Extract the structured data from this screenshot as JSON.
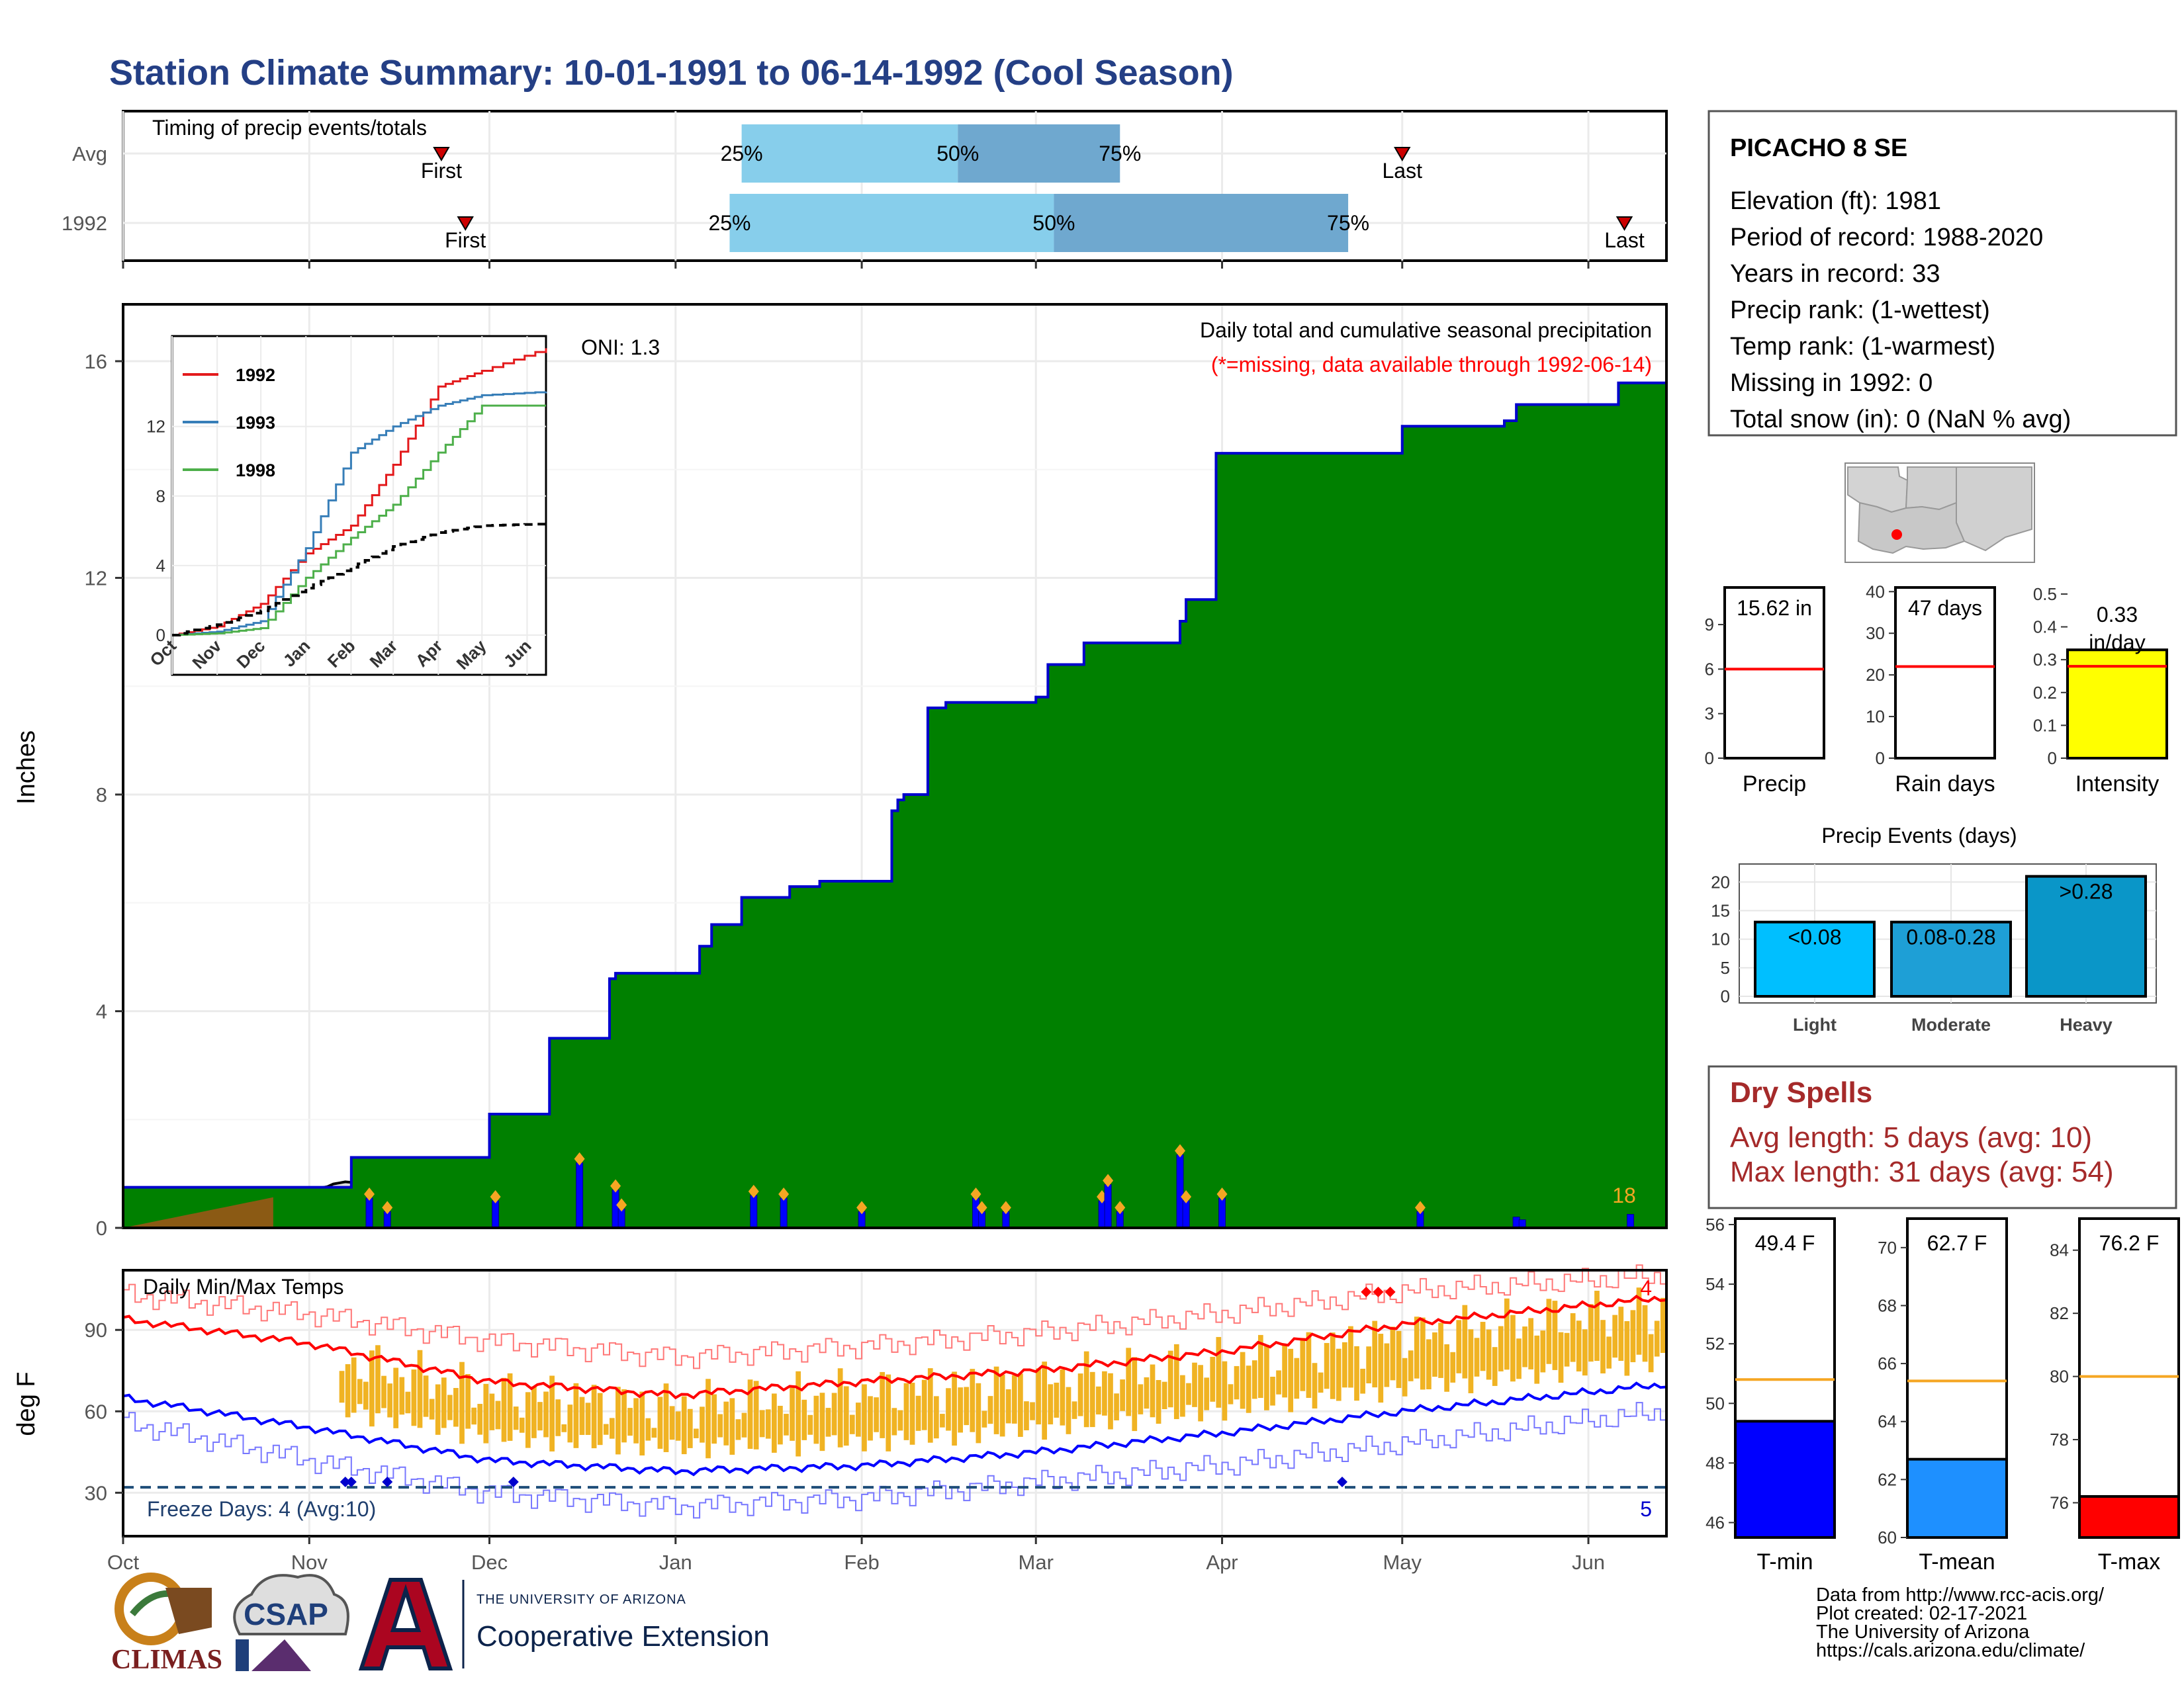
{
  "title": "Station Climate Summary: 10-01-1991 to 06-14-1992 (Cool Season)",
  "timing": {
    "title": "Timing of precip events/totals",
    "rows": [
      {
        "label": "Avg",
        "first": "First",
        "last": "Last",
        "first_date": "1991-11-23",
        "last_date": "1992-05-01",
        "p25": "25%",
        "p50": "50%",
        "p75": "75%",
        "p25_date": "1992-01-12",
        "p50_date": "1992-02-17",
        "p75_date": "1992-03-15"
      },
      {
        "label": "1992",
        "first": "First",
        "last": "Last",
        "first_date": "1991-11-27",
        "last_date": "1992-06-07",
        "p25": "25%",
        "p50": "50%",
        "p75": "75%",
        "p25_date": "1992-01-10",
        "p50_date": "1992-03-04",
        "p75_date": "1992-04-22"
      }
    ]
  },
  "precip_chart": {
    "subtitle": "Daily total and cumulative seasonal precipitation",
    "missing_note": "(*=missing, data available through 1992-06-14)",
    "oni": "ONI: 1.3",
    "ylabel": "Inches",
    "count_label": "18"
  },
  "inset": {
    "legend": [
      "1992",
      "1993",
      "1998"
    ],
    "month_labels": [
      "Oct",
      "Nov",
      "Dec",
      "Jan",
      "Feb",
      "Mar",
      "Apr",
      "May",
      "Jun"
    ],
    "y_ticks": [
      "0",
      "4",
      "8",
      "12"
    ]
  },
  "temp_chart": {
    "title": "Daily Min/Max Temps",
    "freeze_note": "Freeze Days: 4 (Avg:10)",
    "hot_count": "4",
    "cold_count": "5",
    "ylabel": "deg F",
    "y_ticks": [
      "30",
      "60",
      "90"
    ]
  },
  "month_axis": [
    "Oct",
    "Nov",
    "Dec",
    "Jan",
    "Feb",
    "Mar",
    "Apr",
    "May",
    "Jun"
  ],
  "station": {
    "name": "PICACHO 8 SE",
    "lines": [
      "Elevation (ft): 1981",
      "Period of record: 1988-2020",
      "Years in record: 33",
      "Precip rank:  (1-wettest)",
      "Temp rank:  (1-warmest)",
      "Missing in 1992: 0",
      "Total snow (in): 0 (NaN % avg)"
    ]
  },
  "mini_bars": [
    {
      "label": "Precip",
      "value_text": "15.62 in",
      "value": 15.62,
      "avg": 6.0,
      "ymax": 11.5,
      "ticks": [
        0,
        3,
        6,
        9
      ],
      "color": "#ffffff"
    },
    {
      "label": "Rain days",
      "value_text": "47 days",
      "value": 47,
      "avg": 22,
      "ymax": 41,
      "ticks": [
        0,
        10,
        20,
        30,
        40
      ],
      "color": "#ffffff"
    },
    {
      "label": "Intensity",
      "value_text": "0.33 in/day",
      "value": 0.33,
      "avg": 0.28,
      "ymax": 0.52,
      "ticks": [
        0.0,
        0.1,
        0.2,
        0.3,
        0.4,
        0.5
      ],
      "color": "#ffff00"
    }
  ],
  "precip_events": {
    "title": "Precip Events (days)",
    "categories": [
      "Light",
      "Moderate",
      "Heavy"
    ],
    "bins": [
      "<0.08",
      "0.08-0.28",
      ">0.28"
    ],
    "values": [
      13,
      13,
      21
    ],
    "ticks": [
      0,
      5,
      10,
      15,
      20
    ],
    "colors": [
      "#00bfff",
      "#1e9fd6",
      "#0a96c8"
    ]
  },
  "dry_spells": {
    "title": "Dry Spells",
    "avg_line": "Avg length: 5 days (avg: 10)",
    "max_line": "Max length: 31 days (avg: 54)"
  },
  "temp_bars": [
    {
      "label": "T-min",
      "value_text": "49.4 F",
      "value": 49.4,
      "avg": 50.8,
      "ymin": 45.5,
      "ymax": 56.2,
      "ticks": [
        46,
        48,
        50,
        52,
        54,
        56
      ],
      "color": "#0000ff"
    },
    {
      "label": "T-mean",
      "value_text": "62.7 F",
      "value": 62.7,
      "avg": 65.4,
      "ymin": 60.0,
      "ymax": 71.0,
      "ticks": [
        60,
        62,
        64,
        66,
        68,
        70
      ],
      "color": "#1e90ff"
    },
    {
      "label": "T-max",
      "value_text": "76.2 F",
      "value": 76.2,
      "avg": 80.0,
      "ymin": 74.9,
      "ymax": 85.0,
      "ticks": [
        76,
        78,
        80,
        82,
        84
      ],
      "color": "#ff0000"
    }
  ],
  "footer": {
    "lines": [
      "Data from http://www.rcc-acis.org/",
      "Plot created: 02-17-2021",
      "The University of Arizona",
      "https://cals.arizona.edu/climate/"
    ]
  },
  "logos": {
    "climas": "CLIMAS",
    "csap": "CSAP",
    "ua_small": "THE UNIVERSITY OF ARIZONA",
    "ua_big": "Cooperative Extension"
  },
  "chart_data": [
    {
      "type": "area",
      "title": "",
      "subtitle": "Daily total and cumulative seasonal precipitation",
      "ylabel": "Inches",
      "ylim": [
        0,
        17
      ],
      "series": [
        {
          "name": "",
          "x": [
            "1991-10-01",
            "1991-11-07",
            "1991-11-08",
            "1991-11-27",
            "1991-12-01",
            "1991-12-10",
            "1991-12-11",
            "1991-12-12",
            "1991-12-13",
            "1991-12-20",
            "1991-12-21",
            "1991-12-22",
            "1991-12-23",
            "1991-12-24",
            "1991-12-25",
            "1992-01-01",
            "1992-01-05",
            "1992-01-07",
            "1992-01-10",
            "1992-01-12",
            "1992-01-15",
            "1992-01-20",
            "1992-01-22",
            "1992-01-25",
            "1992-02-05",
            "1992-02-06",
            "1992-02-07",
            "1992-02-08",
            "1992-02-12",
            "1992-02-15",
            "1992-02-20",
            "1992-02-22",
            "1992-03-01",
            "1992-03-03",
            "1992-03-08",
            "1992-03-09",
            "1992-03-20",
            "1992-03-25",
            "1992-03-26",
            "1992-03-27",
            "1992-03-31",
            "1992-05-01",
            "1992-05-02",
            "1992-05-18",
            "1992-05-20",
            "1992-05-27",
            "1992-06-06",
            "1992-06-14"
          ],
          "y": [
            0.75,
            0.75,
            1.3,
            1.3,
            2.1,
            2.1,
            3.5,
            3.5,
            3.5,
            3.5,
            4.6,
            4.7,
            4.7,
            4.7,
            4.7,
            4.7,
            5.2,
            5.6,
            5.6,
            6.1,
            6.1,
            6.3,
            6.3,
            6.4,
            6.4,
            7.7,
            7.9,
            8.0,
            9.6,
            9.7,
            9.7,
            9.7,
            9.8,
            10.4,
            10.4,
            10.8,
            10.8,
            11.2,
            11.6,
            11.6,
            14.3,
            14.8,
            14.8,
            14.9,
            15.2,
            15.2,
            15.6,
            15.6
          ]
        },
        {
          "name": "",
          "x": [
            "1991-10-01",
            "1991-11-01",
            "1991-12-01",
            "1992-01-01",
            "1992-02-01",
            "1992-03-01",
            "1992-04-01",
            "1992-05-01",
            "1992-06-14"
          ],
          "y": [
            0,
            0.7,
            1.3,
            2.35,
            3.4,
            4.5,
            5.25,
            5.45,
            5.65
          ]
        }
      ],
      "daily_precip": {
        "x": [
          "1991-11-11",
          "1991-11-14",
          "1991-12-02",
          "1991-12-16",
          "1991-12-22",
          "1991-12-23",
          "1992-01-14",
          "1992-01-19",
          "1992-02-01",
          "1992-02-20",
          "1992-02-21",
          "1992-02-25",
          "1992-03-12",
          "1992-03-13",
          "1992-03-15",
          "1992-03-25",
          "1992-03-26",
          "1992-04-01",
          "1992-05-04",
          "1992-05-20",
          "1992-05-21",
          "1992-06-08"
        ],
        "y": [
          0.55,
          0.3,
          0.5,
          1.2,
          0.7,
          0.35,
          0.6,
          0.55,
          0.3,
          0.55,
          0.3,
          0.3,
          0.5,
          0.8,
          0.3,
          1.35,
          0.5,
          0.55,
          0.3,
          0.2,
          0.15,
          0.25
        ]
      }
    },
    {
      "type": "line",
      "title": "",
      "ylim": [
        0,
        17
      ],
      "series": [
        {
          "name": "1992",
          "x": [
            "1991-10-01",
            "1991-11-01",
            "1991-12-01",
            "1992-01-01",
            "1992-02-01",
            "1992-03-01",
            "1992-04-01",
            "1992-05-01",
            "1992-06-14"
          ],
          "y": [
            0,
            0.5,
            1.8,
            4.7,
            6.3,
            9.8,
            14.3,
            15.2,
            16.5
          ]
        },
        {
          "name": "1993",
          "x": [
            "1991-10-01",
            "1991-11-01",
            "1991-12-01",
            "1992-01-01",
            "1992-02-01",
            "1992-03-01",
            "1992-04-01",
            "1992-05-01",
            "1992-06-14"
          ],
          "y": [
            0,
            0.2,
            0.8,
            5.0,
            10.5,
            12.0,
            13.2,
            13.8,
            14.0
          ]
        },
        {
          "name": "1998",
          "x": [
            "1991-10-01",
            "1991-11-01",
            "1991-12-01",
            "1992-01-01",
            "1992-02-01",
            "1992-03-01",
            "1992-04-01",
            "1992-05-01",
            "1992-06-14"
          ],
          "y": [
            0,
            0.1,
            0.4,
            3.3,
            5.6,
            7.5,
            10.5,
            13.2,
            13.2
          ]
        },
        {
          "name": "",
          "x": [
            "1991-10-01",
            "1991-11-01",
            "1991-12-01",
            "1992-01-01",
            "1992-02-01",
            "1992-03-01",
            "1992-04-01",
            "1992-05-01",
            "1992-06-14"
          ],
          "y": [
            0,
            0.6,
            1.4,
            2.7,
            3.9,
            5.1,
            5.9,
            6.3,
            6.4
          ]
        }
      ]
    },
    {
      "type": "line",
      "title": "Daily Min/Max Temps",
      "ylabel": "deg F",
      "ylim": [
        14,
        112
      ],
      "series": [
        {
          "name": "",
          "x": [
            "1991-10-01",
            "1991-11-01",
            "1991-12-01",
            "1992-01-01",
            "1992-02-01",
            "1992-03-01",
            "1992-04-01",
            "1992-05-01",
            "1992-06-14"
          ],
          "y": [
            94,
            85,
            71,
            66,
            71,
            75,
            82,
            92,
            102
          ]
        },
        {
          "name": "",
          "x": [
            "1991-10-01",
            "1991-11-01",
            "1991-12-01",
            "1992-01-01",
            "1992-02-01",
            "1992-03-01",
            "1992-04-01",
            "1992-05-01",
            "1992-06-14"
          ],
          "y": [
            65,
            54,
            42,
            38,
            40,
            45,
            52,
            60,
            70
          ]
        },
        {
          "name": "",
          "x": [
            "1991-10-01",
            "1991-11-01",
            "1991-12-01",
            "1992-01-01",
            "1992-02-01",
            "1992-03-01",
            "1992-04-01",
            "1992-05-01",
            "1992-06-14"
          ],
          "y": [
            103,
            96,
            86,
            80,
            84,
            89,
            96,
            104,
            110
          ]
        },
        {
          "name": "",
          "x": [
            "1991-10-01",
            "1991-11-01",
            "1991-12-01",
            "1992-01-01",
            "1992-02-01",
            "1992-03-01",
            "1992-04-01",
            "1992-05-01",
            "1992-06-14"
          ],
          "y": [
            56,
            42,
            30,
            25,
            28,
            34,
            40,
            48,
            60
          ]
        }
      ],
      "freeze_line": 32
    },
    {
      "type": "bar",
      "title": "Precip Events (days)",
      "categories": [
        "Light",
        "Moderate",
        "Heavy"
      ],
      "values": [
        13,
        13,
        21
      ]
    }
  ]
}
